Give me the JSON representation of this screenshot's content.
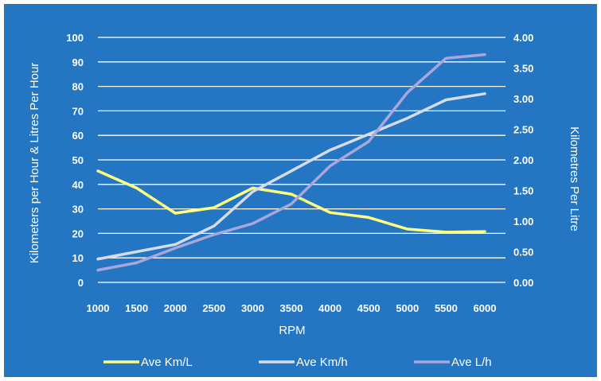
{
  "chart_data": {
    "type": "line",
    "title": "",
    "xlabel": "RPM",
    "ylabel_left": "Kilometers per Hour & Litres Per Hour",
    "ylabel_right": "Kilometres Per Litre",
    "categories": [
      "1000",
      "1500",
      "2000",
      "2500",
      "3000",
      "3500",
      "4000",
      "4500",
      "5000",
      "5500",
      "6000"
    ],
    "y_left": {
      "min": 0,
      "max": 100,
      "step": 10,
      "ticks": [
        "0",
        "10",
        "20",
        "30",
        "40",
        "50",
        "60",
        "70",
        "80",
        "90",
        "100"
      ]
    },
    "y_right": {
      "min": 0,
      "max": 4,
      "step": 0.5,
      "ticks": [
        "0.00",
        "0.50",
        "1.00",
        "1.50",
        "2.00",
        "2.50",
        "3.00",
        "3.50",
        "4.00"
      ]
    },
    "grid": true,
    "legend_position": "bottom",
    "series": [
      {
        "name": "Ave Km/L",
        "axis": "right",
        "color": "#ffff80",
        "values": [
          1.82,
          1.54,
          1.13,
          1.22,
          1.54,
          1.44,
          1.14,
          1.06,
          0.87,
          0.82,
          0.83
        ]
      },
      {
        "name": "Ave Km/h",
        "axis": "left",
        "color": "#d6dce5",
        "values": [
          9.5,
          12.5,
          15.5,
          23,
          37,
          45.5,
          54,
          60.5,
          67,
          74.5,
          77
        ]
      },
      {
        "name": "Ave L/h",
        "axis": "left",
        "color": "#a9a6dc",
        "values": [
          5,
          8,
          14,
          19.5,
          24,
          32,
          47.5,
          57.5,
          77.5,
          91.5,
          93
        ]
      }
    ]
  }
}
